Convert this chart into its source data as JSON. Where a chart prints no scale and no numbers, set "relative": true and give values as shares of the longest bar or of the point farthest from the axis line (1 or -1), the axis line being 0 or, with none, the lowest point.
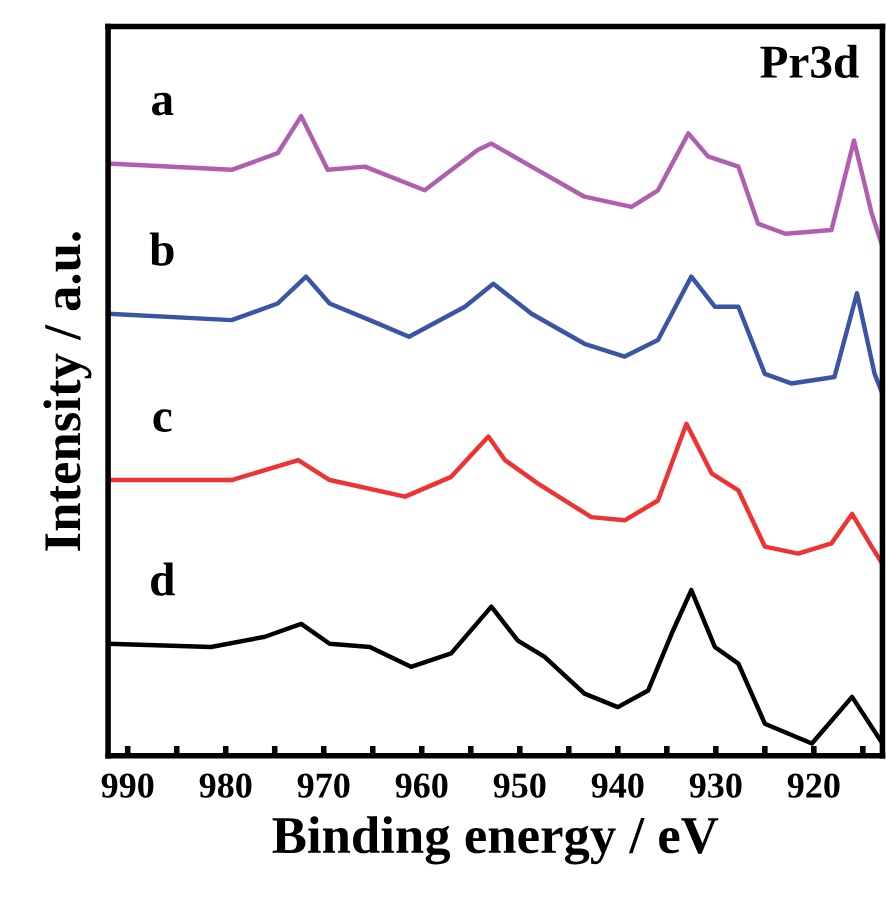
{
  "chart_data": {
    "type": "line",
    "title": "Pr3d",
    "xlabel": "Binding energy / eV",
    "ylabel": "Intensity / a.u.",
    "relative": true,
    "xlim": [
      992,
      913
    ],
    "xticks": [
      990,
      {
        "value": 985,
        "label": null
      },
      980,
      {
        "value": 975,
        "label": null
      },
      970,
      {
        "value": 965,
        "label": null
      },
      960,
      {
        "value": 955,
        "label": null
      },
      950,
      {
        "value": 945,
        "label": null
      },
      940,
      {
        "value": 935,
        "label": null
      },
      930,
      {
        "value": 925,
        "label": null
      },
      920,
      {
        "value": 915,
        "label": null
      }
    ],
    "tick_labels": "x",
    "legend": false,
    "grid": false,
    "marker": "none",
    "line_style": "solid",
    "series": [
      {
        "name": "a",
        "color": "#b05fb0",
        "x": [
          992,
          979.4,
          974.7,
          972.3,
          969.6,
          965.8,
          959.7,
          954.3,
          952.9,
          948.8,
          943.4,
          938.6,
          935.9,
          932.8,
          930.8,
          927.7,
          925.7,
          922.9,
          918.2,
          915.9,
          914.1,
          913.1
        ],
        "values": [
          0.926,
          0.916,
          0.942,
          1.0,
          0.916,
          0.921,
          0.884,
          0.947,
          0.957,
          0.921,
          0.874,
          0.858,
          0.884,
          0.973,
          0.937,
          0.921,
          0.832,
          0.816,
          0.822,
          0.962,
          0.848,
          0.801
        ]
      },
      {
        "name": "b",
        "color": "#3a55a5",
        "x": [
          992,
          979.4,
          974.7,
          971.8,
          969.4,
          965.3,
          961.3,
          955.6,
          952.7,
          948.8,
          943.4,
          939.3,
          935.9,
          932.5,
          930.1,
          927.7,
          925.0,
          922.3,
          917.9,
          915.6,
          913.8,
          913.0
        ],
        "values": [
          0.691,
          0.681,
          0.707,
          0.749,
          0.707,
          0.681,
          0.655,
          0.702,
          0.738,
          0.691,
          0.644,
          0.624,
          0.65,
          0.749,
          0.702,
          0.702,
          0.597,
          0.582,
          0.592,
          0.723,
          0.597,
          0.566
        ]
      },
      {
        "name": "c",
        "color": "#ee3333",
        "x": [
          992,
          979.4,
          972.6,
          969.4,
          961.7,
          957.0,
          953.2,
          951.5,
          948.1,
          942.7,
          939.3,
          935.9,
          933.0,
          930.4,
          927.7,
          925.0,
          921.6,
          918.2,
          916.1,
          914.1,
          913.0
        ],
        "values": [
          0.431,
          0.431,
          0.462,
          0.431,
          0.405,
          0.436,
          0.499,
          0.462,
          0.425,
          0.373,
          0.368,
          0.399,
          0.519,
          0.441,
          0.415,
          0.327,
          0.316,
          0.332,
          0.378,
          0.327,
          0.3
        ]
      },
      {
        "name": "d",
        "color": "#000000",
        "x": [
          992,
          981.5,
          976.0,
          972.3,
          969.4,
          965.3,
          961.1,
          957.0,
          952.9,
          950.2,
          947.5,
          943.4,
          940.0,
          936.9,
          934.5,
          932.5,
          930.1,
          927.7,
          925.0,
          920.2,
          916.1,
          913.0
        ],
        "values": [
          0.175,
          0.17,
          0.186,
          0.206,
          0.175,
          0.17,
          0.139,
          0.16,
          0.233,
          0.18,
          0.155,
          0.097,
          0.076,
          0.102,
          0.191,
          0.259,
          0.17,
          0.144,
          0.05,
          0.019,
          0.092,
          0.019
        ]
      }
    ]
  }
}
